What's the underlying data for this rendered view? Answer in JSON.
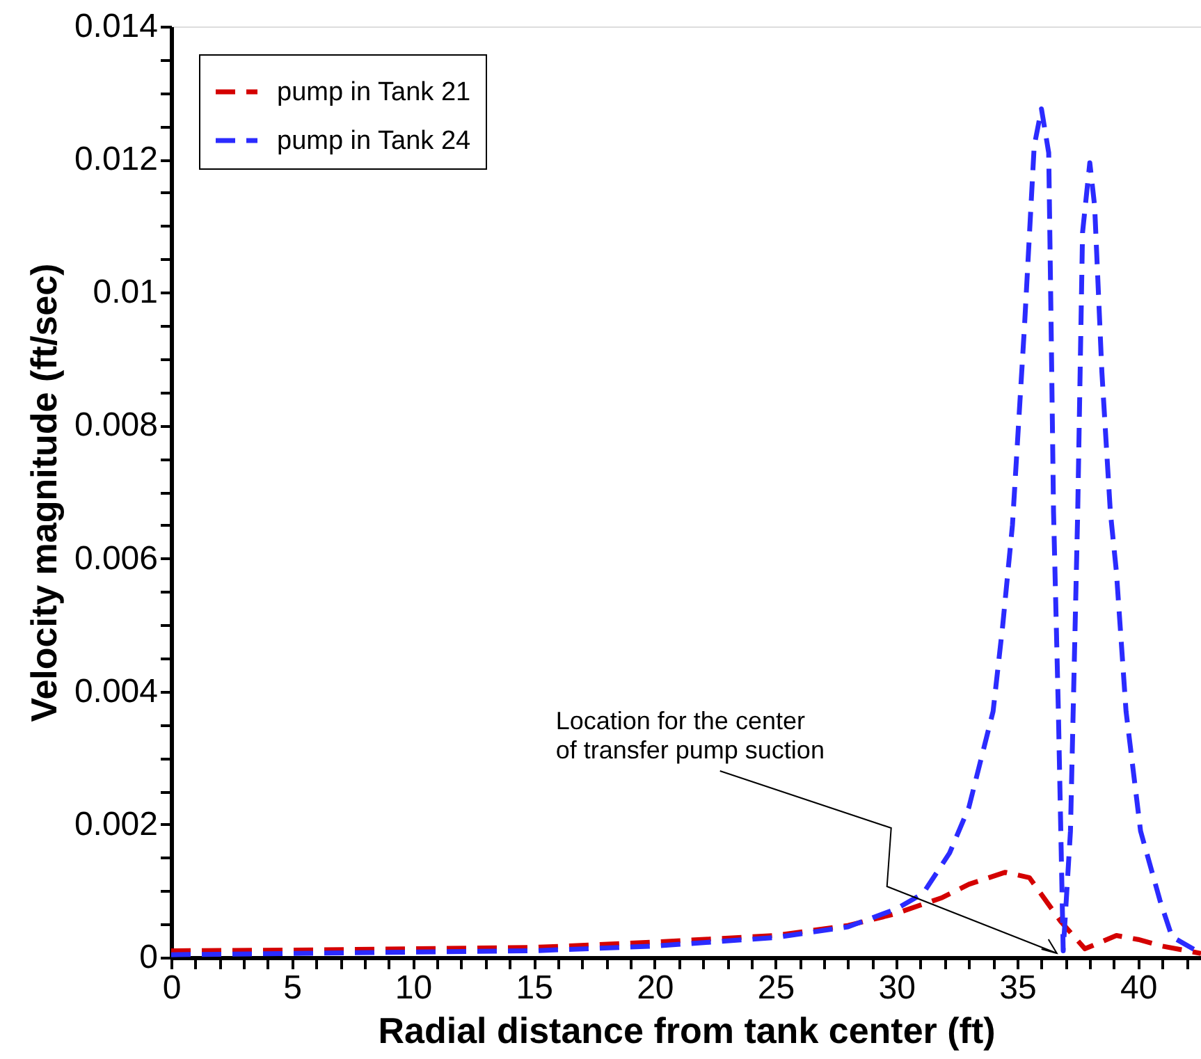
{
  "chart_data": {
    "type": "line",
    "xlabel": "Radial distance from tank center (ft)",
    "ylabel": "Velocity magnitude (ft/sec)",
    "xlim": [
      0,
      42.6
    ],
    "ylim": [
      0,
      0.014
    ],
    "xticks": [
      0,
      5,
      10,
      15,
      20,
      25,
      30,
      35,
      40,
      {
        "value": 1,
        "label": null
      },
      {
        "value": 2,
        "label": null
      },
      {
        "value": 3,
        "label": null
      },
      {
        "value": 4,
        "label": null
      },
      {
        "value": 6,
        "label": null
      },
      {
        "value": 7,
        "label": null
      },
      {
        "value": 8,
        "label": null
      },
      {
        "value": 9,
        "label": null
      },
      {
        "value": 11,
        "label": null
      },
      {
        "value": 12,
        "label": null
      },
      {
        "value": 13,
        "label": null
      },
      {
        "value": 14,
        "label": null
      },
      {
        "value": 16,
        "label": null
      },
      {
        "value": 17,
        "label": null
      },
      {
        "value": 18,
        "label": null
      },
      {
        "value": 19,
        "label": null
      },
      {
        "value": 21,
        "label": null
      },
      {
        "value": 22,
        "label": null
      },
      {
        "value": 23,
        "label": null
      },
      {
        "value": 24,
        "label": null
      },
      {
        "value": 26,
        "label": null
      },
      {
        "value": 27,
        "label": null
      },
      {
        "value": 28,
        "label": null
      },
      {
        "value": 29,
        "label": null
      },
      {
        "value": 31,
        "label": null
      },
      {
        "value": 32,
        "label": null
      },
      {
        "value": 33,
        "label": null
      },
      {
        "value": 34,
        "label": null
      },
      {
        "value": 36,
        "label": null
      },
      {
        "value": 37,
        "label": null
      },
      {
        "value": 38,
        "label": null
      },
      {
        "value": 39,
        "label": null
      },
      {
        "value": 41,
        "label": null
      },
      {
        "value": 42,
        "label": null
      }
    ],
    "yticks": [
      0,
      0.002,
      0.004,
      0.006,
      0.008,
      0.01,
      0.012,
      0.014,
      {
        "value": 0.0005,
        "label": null
      },
      {
        "value": 0.001,
        "label": null
      },
      {
        "value": 0.0015,
        "label": null
      },
      {
        "value": 0.0025,
        "label": null
      },
      {
        "value": 0.003,
        "label": null
      },
      {
        "value": 0.0035,
        "label": null
      },
      {
        "value": 0.0045,
        "label": null
      },
      {
        "value": 0.005,
        "label": null
      },
      {
        "value": 0.0055,
        "label": null
      },
      {
        "value": 0.0065,
        "label": null
      },
      {
        "value": 0.007,
        "label": null
      },
      {
        "value": 0.0075,
        "label": null
      },
      {
        "value": 0.0085,
        "label": null
      },
      {
        "value": 0.009,
        "label": null
      },
      {
        "value": 0.0095,
        "label": null
      },
      {
        "value": 0.0105,
        "label": null
      },
      {
        "value": 0.011,
        "label": null
      },
      {
        "value": 0.0115,
        "label": null
      },
      {
        "value": 0.0125,
        "label": null
      },
      {
        "value": 0.013,
        "label": null
      },
      {
        "value": 0.0135,
        "label": null
      }
    ],
    "grid": false,
    "legend": "top left",
    "marker": "none",
    "series": [
      {
        "name": "pump in Tank 21",
        "color": "#d40000",
        "line_style": "dashed",
        "x": [
          0,
          5,
          10,
          15,
          20,
          25,
          28,
          29.9,
          31.9,
          33,
          34.5,
          35.5,
          36.8,
          37.8,
          39.1,
          40,
          41,
          42.6
        ],
        "values": [
          0.0001,
          0.00011,
          0.00013,
          0.00015,
          0.00023,
          0.00033,
          0.00048,
          0.00065,
          0.0009,
          0.0011,
          0.00128,
          0.0012,
          0.00054,
          0.00013,
          0.00033,
          0.00027,
          0.00017,
          6e-05
        ]
      },
      {
        "name": "pump in Tank 24",
        "color": "#2b2bff",
        "line_style": "dashed",
        "x": [
          0,
          5,
          10,
          15,
          20,
          25,
          28,
          30,
          31.1,
          32.2,
          33,
          34,
          34.4,
          34.8,
          35.3,
          35.7,
          36,
          36.3,
          36.4,
          36.5,
          36.7,
          36.9,
          37.2,
          37.5,
          37.7,
          38,
          38.2,
          38.5,
          38.85,
          39.1,
          39.5,
          40.1,
          40.9,
          41.4,
          42.6
        ],
        "values": [
          4e-05,
          6e-05,
          8e-05,
          0.0001,
          0.00017,
          0.0003,
          0.00046,
          0.00073,
          0.00096,
          0.00157,
          0.00226,
          0.0037,
          0.005,
          0.0065,
          0.0095,
          0.0122,
          0.01276,
          0.0121,
          0.0095,
          0.0067,
          0.0037,
          0.0001,
          0.0019,
          0.0067,
          0.0109,
          0.01195,
          0.0113,
          0.0088,
          0.0067,
          0.0058,
          0.0037,
          0.0019,
          0.00086,
          0.00031,
          6e-05
        ]
      }
    ],
    "annotations": [
      "Location for the center\n  of transfer pump suction"
    ]
  }
}
